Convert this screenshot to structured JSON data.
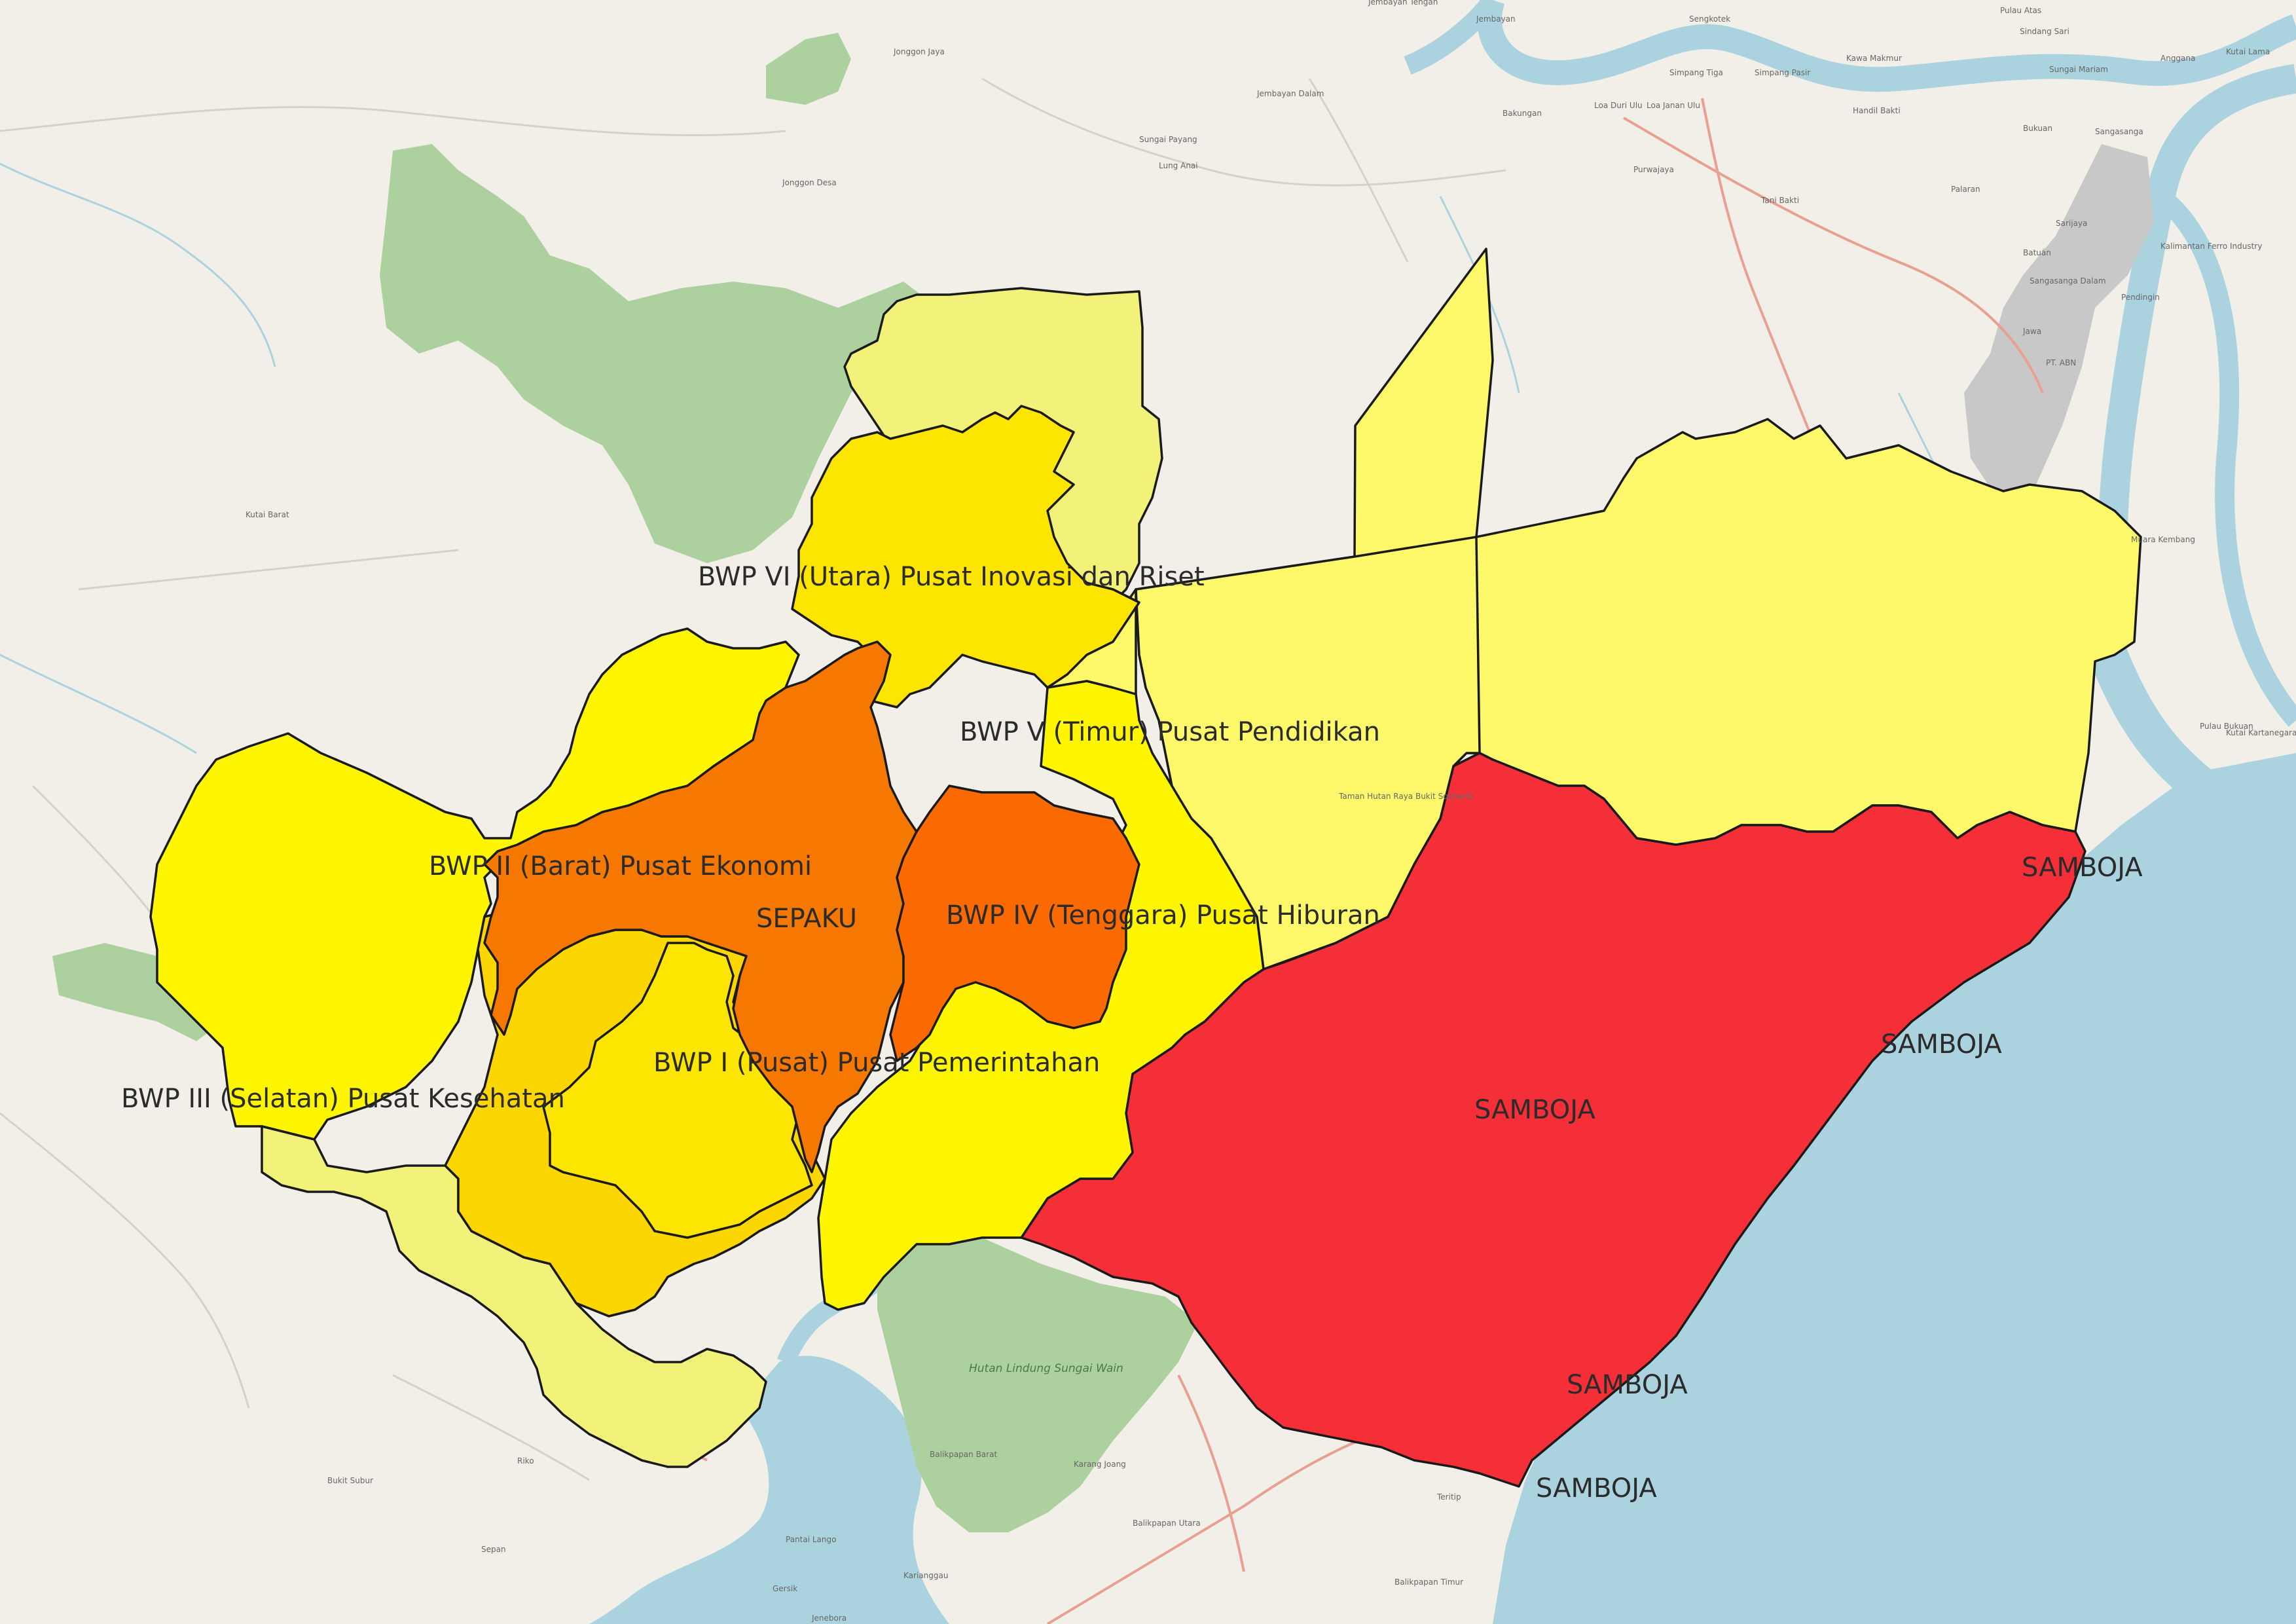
{
  "colors": {
    "land": "#f2efe9",
    "sea": "#aad3df",
    "forest": "#add19e",
    "industrial": "#c8c8c8",
    "road_minor": "#d8d0c8",
    "road_major": "#e8a090",
    "pale_yellow": "#f2f27a",
    "light_yellow": "#fdf96b",
    "yellow": "#fdf600",
    "gold": "#fce500",
    "amber": "#fcd600",
    "orange": "#f77800",
    "orange_dark": "#fb6a00",
    "red": "#f42f37"
  },
  "labels": {
    "bwp_vi": "BWP VI (Utara) Pusat Inovasi dan Riset",
    "bwp_v": "BWP V (Timur) Pusat Pendidikan",
    "bwp_ii": "BWP II (Barat) Pusat Ekonomi",
    "sepaku": "SEPAKU",
    "bwp_iv": "BWP IV (Tenggara) Pusat Hiburan",
    "bwp_i": "BWP I (Pusat) Pusat Pemerintahan",
    "bwp_iii": "BWP III (Selatan) Pusat Kesehatan",
    "samboja_main": "SAMBOJA",
    "samboja_1": "SAMBOJA",
    "samboja_2": "SAMBOJA",
    "samboja_3": "SAMBOJA",
    "samboja_4": "SAMBOJA"
  },
  "basemap_labels": {
    "jonggon_jaya": "Jonggon Jaya",
    "jonggon_desa": "Jonggon Desa",
    "jembayan_dalam": "Jembayan Dalam",
    "sungai_payang": "Sungai Payang",
    "lung_anai": "Lung Anai",
    "jembayan_tengah": "Jembayan Tengah",
    "jembayan": "Jembayan",
    "sengkotek": "Sengkotek",
    "simpang_tiga": "Simpang Tiga",
    "simpang_pasir": "Simpang Pasir",
    "kawa_makmur": "Kawa Makmur",
    "handil_bakti": "Handil Bakti",
    "loa_duri_ulu": "Loa Duri Ulu",
    "loa_janan_ulu": "Loa Janan Ulu",
    "bakungan": "Bakungan",
    "purwajaya": "Purwajaya",
    "tani_bakti": "Tani Bakti",
    "palaran": "Palaran",
    "bukuan": "Bukuan",
    "pulau_atas": "Pulau Atas",
    "sindang_sari": "Sindang Sari",
    "sungai_mariam": "Sungai Mariam",
    "anggana": "Anggana",
    "kutai_lama": "Kutai Lama",
    "sangasanga": "Sangasanga",
    "sarijaya": "Sarijaya",
    "batuan": "Batuan",
    "sangasanga_dalam": "Sangasanga Dalam",
    "pendingin": "Pendingin",
    "jawa": "Jawa",
    "pt_abn": "PT. ABN",
    "kalimantan_ferro": "Kalimantan Ferro Industry",
    "muara_kembang": "Muara Kembang",
    "pulau_bukuan": "Pulau Bukuan",
    "kutai_barat": "Kutai Barat",
    "kutai_kartanegara": "Kutai Kartanegara",
    "taman_hutan_raya": "Taman Hutan Raya Bukit Soeharto",
    "hutan_lindung": "Hutan Lindung Sungai Wain",
    "balikpapan_barat": "Balikpapan Barat",
    "balikpapan_utara": "Balikpapan Utara",
    "balikpapan_timur": "Balikpapan Timur",
    "karang_joang": "Karang Joang",
    "teritip": "Teritip",
    "pantai_lango": "Pantai Lango",
    "karianggau": "Karianggau",
    "jenebora": "Jenebora",
    "gersik": "Gersik",
    "riko": "Riko",
    "bukit_subur": "Bukit Subur",
    "sepan": "Sepan"
  }
}
